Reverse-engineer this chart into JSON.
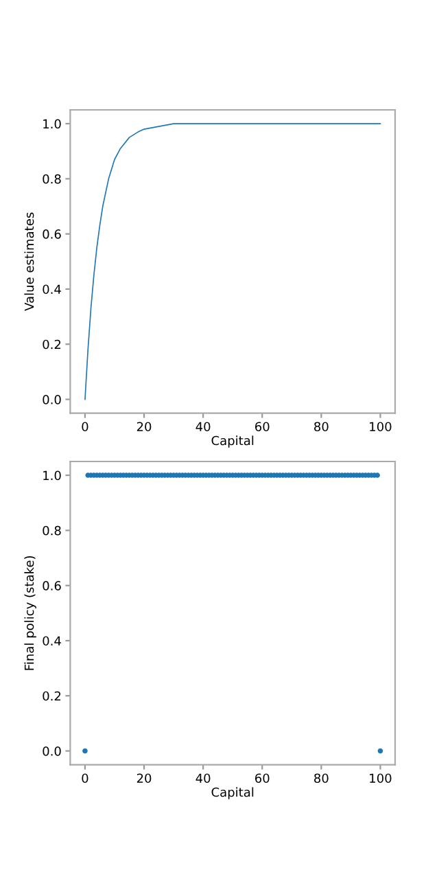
{
  "chart_data": [
    {
      "type": "line",
      "xlabel": "Capital",
      "ylabel": "Value estimates",
      "grid": false,
      "legend": false,
      "marker": "none",
      "line_style": "solid",
      "x": [
        0,
        1,
        2,
        3,
        4,
        5,
        6,
        8,
        10,
        12,
        15,
        18,
        20,
        25,
        30,
        40,
        60,
        80,
        100
      ],
      "series": [
        {
          "color": "#1f77b4",
          "values": [
            0,
            0.18,
            0.33,
            0.45,
            0.55,
            0.63,
            0.7,
            0.8,
            0.87,
            0.91,
            0.95,
            0.97,
            0.98,
            0.99,
            1.0,
            1.0,
            1.0,
            1.0,
            1.0
          ]
        }
      ],
      "xlim": [
        -5,
        105
      ],
      "ylim": [
        -0.05,
        1.05
      ],
      "xticks": [
        0,
        20,
        40,
        60,
        80,
        100
      ],
      "yticks": [
        {
          "value": 0,
          "label": "0.0"
        },
        {
          "value": 0.2,
          "label": "0.2"
        },
        {
          "value": 0.4,
          "label": "0.4"
        },
        {
          "value": 0.6,
          "label": "0.6"
        },
        {
          "value": 0.8,
          "label": "0.8"
        },
        {
          "value": 1,
          "label": "1.0"
        }
      ]
    },
    {
      "type": "scatter",
      "xlabel": "Capital",
      "ylabel": "Final policy (stake)",
      "grid": false,
      "legend": false,
      "marker": "circle",
      "x": [
        0,
        1,
        2,
        3,
        4,
        5,
        6,
        7,
        8,
        9,
        10,
        11,
        12,
        13,
        14,
        15,
        16,
        17,
        18,
        19,
        20,
        21,
        22,
        23,
        24,
        25,
        26,
        27,
        28,
        29,
        30,
        31,
        32,
        33,
        34,
        35,
        36,
        37,
        38,
        39,
        40,
        41,
        42,
        43,
        44,
        45,
        46,
        47,
        48,
        49,
        50,
        51,
        52,
        53,
        54,
        55,
        56,
        57,
        58,
        59,
        60,
        61,
        62,
        63,
        64,
        65,
        66,
        67,
        68,
        69,
        70,
        71,
        72,
        73,
        74,
        75,
        76,
        77,
        78,
        79,
        80,
        81,
        82,
        83,
        84,
        85,
        86,
        87,
        88,
        89,
        90,
        91,
        92,
        93,
        94,
        95,
        96,
        97,
        98,
        99,
        100
      ],
      "series": [
        {
          "color": "#1f77b4",
          "values": [
            0,
            1,
            1,
            1,
            1,
            1,
            1,
            1,
            1,
            1,
            1,
            1,
            1,
            1,
            1,
            1,
            1,
            1,
            1,
            1,
            1,
            1,
            1,
            1,
            1,
            1,
            1,
            1,
            1,
            1,
            1,
            1,
            1,
            1,
            1,
            1,
            1,
            1,
            1,
            1,
            1,
            1,
            1,
            1,
            1,
            1,
            1,
            1,
            1,
            1,
            1,
            1,
            1,
            1,
            1,
            1,
            1,
            1,
            1,
            1,
            1,
            1,
            1,
            1,
            1,
            1,
            1,
            1,
            1,
            1,
            1,
            1,
            1,
            1,
            1,
            1,
            1,
            1,
            1,
            1,
            1,
            1,
            1,
            1,
            1,
            1,
            1,
            1,
            1,
            1,
            1,
            1,
            1,
            1,
            1,
            1,
            1,
            1,
            1,
            1,
            0
          ]
        }
      ],
      "xlim": [
        -5,
        105
      ],
      "ylim": [
        -0.05,
        1.05
      ],
      "xticks": [
        0,
        20,
        40,
        60,
        80,
        100
      ],
      "yticks": [
        {
          "value": 0,
          "label": "0.0"
        },
        {
          "value": 0.2,
          "label": "0.2"
        },
        {
          "value": 0.4,
          "label": "0.4"
        },
        {
          "value": 0.6,
          "label": "0.6"
        },
        {
          "value": 0.8,
          "label": "0.8"
        },
        {
          "value": 1,
          "label": "1.0"
        }
      ]
    }
  ]
}
